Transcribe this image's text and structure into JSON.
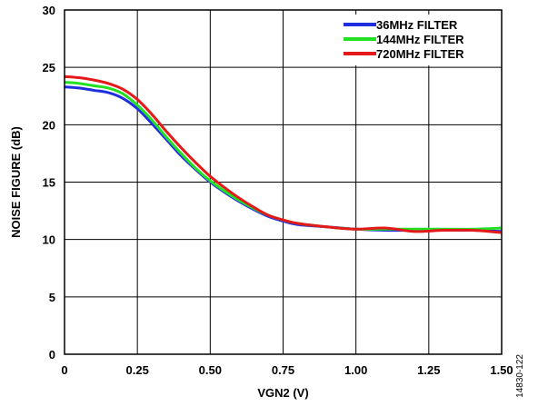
{
  "chart_data": {
    "type": "line",
    "xlabel": "VGN2 (V)",
    "ylabel": "NOISE FIGURE (dB)",
    "xlim": [
      0,
      1.5
    ],
    "ylim": [
      0,
      30
    ],
    "xticks": [
      "0",
      "0.25",
      "0.50",
      "0.75",
      "1.00",
      "1.25",
      "1.50"
    ],
    "xtick_values": [
      0,
      0.25,
      0.5,
      0.75,
      1.0,
      1.25,
      1.5
    ],
    "yticks": [
      "0",
      "5",
      "10",
      "15",
      "20",
      "25",
      "30"
    ],
    "ytick_values": [
      0,
      5,
      10,
      15,
      20,
      25,
      30
    ],
    "grid": true,
    "legend_position": "top-right",
    "figure_id": "14830-122",
    "series": [
      {
        "name": "36MHz FILTER",
        "color": "#1f2fe0",
        "x": [
          0,
          0.05,
          0.1,
          0.15,
          0.2,
          0.25,
          0.3,
          0.35,
          0.4,
          0.45,
          0.5,
          0.55,
          0.6,
          0.65,
          0.7,
          0.75,
          0.8,
          0.9,
          1.0,
          1.1,
          1.2,
          1.3,
          1.4,
          1.5
        ],
        "y": [
          23.3,
          23.2,
          23.0,
          22.8,
          22.3,
          21.4,
          20.1,
          18.7,
          17.3,
          16.1,
          15.0,
          14.1,
          13.3,
          12.6,
          12.0,
          11.6,
          11.3,
          11.1,
          10.9,
          10.8,
          10.8,
          10.8,
          10.8,
          10.7
        ]
      },
      {
        "name": "144MHz FILTER",
        "color": "#22e022",
        "x": [
          0,
          0.05,
          0.1,
          0.15,
          0.2,
          0.25,
          0.3,
          0.35,
          0.4,
          0.45,
          0.5,
          0.55,
          0.6,
          0.65,
          0.7,
          0.75,
          0.8,
          0.9,
          1.0,
          1.1,
          1.2,
          1.3,
          1.4,
          1.5
        ],
        "y": [
          23.7,
          23.6,
          23.4,
          23.2,
          22.7,
          21.7,
          20.4,
          18.9,
          17.5,
          16.2,
          15.1,
          14.2,
          13.4,
          12.7,
          12.1,
          11.7,
          11.4,
          11.1,
          10.9,
          10.9,
          10.9,
          10.9,
          10.9,
          11.0
        ]
      },
      {
        "name": "720MHz FILTER",
        "color": "#e41a1a",
        "x": [
          0,
          0.05,
          0.1,
          0.15,
          0.2,
          0.25,
          0.3,
          0.35,
          0.4,
          0.45,
          0.5,
          0.55,
          0.6,
          0.65,
          0.7,
          0.75,
          0.8,
          0.9,
          1.0,
          1.1,
          1.2,
          1.3,
          1.4,
          1.5
        ],
        "y": [
          24.2,
          24.1,
          23.9,
          23.6,
          23.1,
          22.2,
          20.9,
          19.4,
          18.0,
          16.7,
          15.5,
          14.5,
          13.6,
          12.8,
          12.1,
          11.7,
          11.4,
          11.1,
          10.9,
          11.0,
          10.7,
          10.8,
          10.8,
          10.6
        ]
      }
    ]
  }
}
